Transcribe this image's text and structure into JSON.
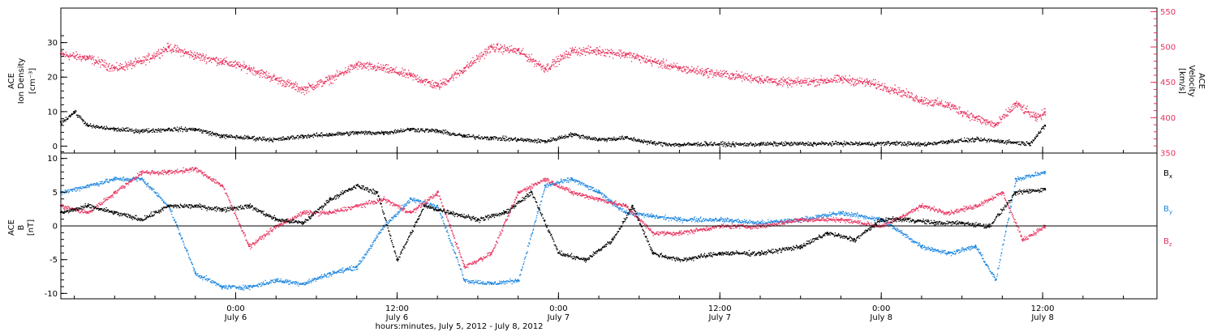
{
  "figure": {
    "xlabel": "hours:minutes, July  5, 2012 - July  8, 2012",
    "x_range": [
      "2012-07-05 11:00",
      "2012-07-08 20:30"
    ]
  },
  "colors": {
    "black": "#000000",
    "red": "#e8325e",
    "blue": "#1c86e0"
  },
  "chart_data": [
    {
      "type": "scatter",
      "panel": "top",
      "ylabel_left": [
        "ACE",
        "Ion Density",
        "[cm⁻³]"
      ],
      "ylabel_right": [
        "ACE",
        "Velocity",
        "[km/s]"
      ],
      "ylim_left": [
        -2,
        40
      ],
      "yticks_left": [
        0,
        10,
        20,
        30
      ],
      "ylim_right": [
        350,
        555
      ],
      "yticks_right": [
        350,
        400,
        450,
        500,
        550
      ],
      "x_ticks": [
        {
          "time": "2012-07-06 00:00",
          "label": "0:00",
          "sublabel": "July 6"
        },
        {
          "time": "2012-07-06 12:00",
          "label": "12:00",
          "sublabel": "July 6"
        },
        {
          "time": "2012-07-07 00:00",
          "label": "0:00",
          "sublabel": "July 7"
        },
        {
          "time": "2012-07-07 12:00",
          "label": "12:00",
          "sublabel": "July 7"
        },
        {
          "time": "2012-07-08 00:00",
          "label": "0:00",
          "sublabel": "July 8"
        },
        {
          "time": "2012-07-08 12:00",
          "label": "12:00",
          "sublabel": "July 8"
        }
      ],
      "series": [
        {
          "key": "velocity",
          "axis": "right",
          "color": "#e8325e",
          "points": [
            [
              "2012-07-05 11:00",
              490
            ],
            [
              "2012-07-05 13:00",
              485
            ],
            [
              "2012-07-05 15:00",
              470
            ],
            [
              "2012-07-05 17:00",
              480
            ],
            [
              "2012-07-05 19:00",
              500
            ],
            [
              "2012-07-05 21:00",
              488
            ],
            [
              "2012-07-05 23:00",
              480
            ],
            [
              "2012-07-06 01:00",
              470
            ],
            [
              "2012-07-06 03:00",
              455
            ],
            [
              "2012-07-06 05:00",
              440
            ],
            [
              "2012-07-06 07:00",
              455
            ],
            [
              "2012-07-06 09:00",
              475
            ],
            [
              "2012-07-06 11:00",
              470
            ],
            [
              "2012-07-06 13:00",
              460
            ],
            [
              "2012-07-06 15:00",
              445
            ],
            [
              "2012-07-06 17:00",
              470
            ],
            [
              "2012-07-06 19:00",
              500
            ],
            [
              "2012-07-06 21:00",
              495
            ],
            [
              "2012-07-06 23:00",
              470
            ],
            [
              "2012-07-07 01:00",
              495
            ],
            [
              "2012-07-07 03:00",
              495
            ],
            [
              "2012-07-07 05:00",
              490
            ],
            [
              "2012-07-07 07:00",
              480
            ],
            [
              "2012-07-07 09:00",
              470
            ],
            [
              "2012-07-07 11:00",
              465
            ],
            [
              "2012-07-07 13:00",
              460
            ],
            [
              "2012-07-07 15:00",
              455
            ],
            [
              "2012-07-07 17:00",
              450
            ],
            [
              "2012-07-07 19:00",
              452
            ],
            [
              "2012-07-07 21:00",
              455
            ],
            [
              "2012-07-07 23:00",
              450
            ],
            [
              "2012-07-08 01:00",
              440
            ],
            [
              "2012-07-08 03:00",
              425
            ],
            [
              "2012-07-08 05:00",
              418
            ],
            [
              "2012-07-08 07:00",
              400
            ],
            [
              "2012-07-08 08:30",
              390
            ],
            [
              "2012-07-08 10:00",
              420
            ],
            [
              "2012-07-08 11:30",
              400
            ],
            [
              "2012-07-08 12:10",
              408
            ]
          ]
        },
        {
          "key": "density",
          "axis": "left",
          "color": "#000000",
          "points": [
            [
              "2012-07-05 11:00",
              7
            ],
            [
              "2012-07-05 12:00",
              10
            ],
            [
              "2012-07-05 13:00",
              6
            ],
            [
              "2012-07-05 15:00",
              5
            ],
            [
              "2012-07-05 17:00",
              4.5
            ],
            [
              "2012-07-05 19:00",
              5
            ],
            [
              "2012-07-05 21:00",
              5
            ],
            [
              "2012-07-05 23:00",
              3
            ],
            [
              "2012-07-06 01:00",
              2.5
            ],
            [
              "2012-07-06 03:00",
              2
            ],
            [
              "2012-07-06 05:00",
              3
            ],
            [
              "2012-07-06 07:00",
              3.5
            ],
            [
              "2012-07-06 09:00",
              4
            ],
            [
              "2012-07-06 11:00",
              4
            ],
            [
              "2012-07-06 13:00",
              5
            ],
            [
              "2012-07-06 15:00",
              4.5
            ],
            [
              "2012-07-06 17:00",
              3
            ],
            [
              "2012-07-06 19:00",
              2.5
            ],
            [
              "2012-07-06 21:00",
              2
            ],
            [
              "2012-07-06 23:00",
              1.5
            ],
            [
              "2012-07-07 01:00",
              3.5
            ],
            [
              "2012-07-07 03:00",
              2
            ],
            [
              "2012-07-07 05:00",
              2.5
            ],
            [
              "2012-07-07 07:00",
              1
            ],
            [
              "2012-07-07 09:00",
              0.5
            ],
            [
              "2012-07-07 11:00",
              0.8
            ],
            [
              "2012-07-07 13:00",
              0.6
            ],
            [
              "2012-07-07 15:00",
              0.7
            ],
            [
              "2012-07-07 17:00",
              0.8
            ],
            [
              "2012-07-07 19:00",
              0.8
            ],
            [
              "2012-07-07 21:00",
              0.9
            ],
            [
              "2012-07-07 23:00",
              0.8
            ],
            [
              "2012-07-08 01:00",
              1
            ],
            [
              "2012-07-08 03:00",
              0.6
            ],
            [
              "2012-07-08 05:00",
              1.5
            ],
            [
              "2012-07-08 07:00",
              2
            ],
            [
              "2012-07-08 09:00",
              1.5
            ],
            [
              "2012-07-08 11:00",
              0.8
            ],
            [
              "2012-07-08 12:10",
              6
            ]
          ]
        }
      ]
    },
    {
      "type": "scatter",
      "panel": "bottom",
      "ylabel_left": [
        "ACE",
        "B",
        "[nT]"
      ],
      "ylim": [
        -10.8,
        10.8
      ],
      "yticks": [
        -10,
        -5,
        0,
        5,
        10
      ],
      "zero_line": true,
      "x_ticks": [
        {
          "time": "2012-07-06 00:00",
          "label": "0:00",
          "sublabel": "July 6"
        },
        {
          "time": "2012-07-06 12:00",
          "label": "12:00",
          "sublabel": "July 6"
        },
        {
          "time": "2012-07-07 00:00",
          "label": "0:00",
          "sublabel": "July 7"
        },
        {
          "time": "2012-07-07 12:00",
          "label": "12:00",
          "sublabel": "July 7"
        },
        {
          "time": "2012-07-08 00:00",
          "label": "0:00",
          "sublabel": "July 8"
        },
        {
          "time": "2012-07-08 12:00",
          "label": "12:00",
          "sublabel": "July 8"
        }
      ],
      "series": [
        {
          "name": "B",
          "subscript": "x",
          "color": "#000000",
          "points": [
            [
              "2012-07-05 11:00",
              2
            ],
            [
              "2012-07-05 13:00",
              3
            ],
            [
              "2012-07-05 15:00",
              2
            ],
            [
              "2012-07-05 17:00",
              1
            ],
            [
              "2012-07-05 19:00",
              3
            ],
            [
              "2012-07-05 21:00",
              3
            ],
            [
              "2012-07-05 23:00",
              2.5
            ],
            [
              "2012-07-06 01:00",
              3
            ],
            [
              "2012-07-06 03:00",
              1
            ],
            [
              "2012-07-06 05:00",
              0.5
            ],
            [
              "2012-07-06 07:00",
              4
            ],
            [
              "2012-07-06 09:00",
              6
            ],
            [
              "2012-07-06 10:30",
              5
            ],
            [
              "2012-07-06 12:00",
              -5
            ],
            [
              "2012-07-06 14:00",
              3
            ],
            [
              "2012-07-06 16:00",
              2
            ],
            [
              "2012-07-06 18:00",
              1
            ],
            [
              "2012-07-06 20:00",
              2
            ],
            [
              "2012-07-06 22:00",
              5
            ],
            [
              "2012-07-07 00:00",
              -4
            ],
            [
              "2012-07-07 02:00",
              -5
            ],
            [
              "2012-07-07 04:00",
              -2
            ],
            [
              "2012-07-07 05:30",
              3
            ],
            [
              "2012-07-07 07:00",
              -4
            ],
            [
              "2012-07-07 09:00",
              -5
            ],
            [
              "2012-07-07 12:00",
              -4
            ],
            [
              "2012-07-07 15:00",
              -4
            ],
            [
              "2012-07-07 18:00",
              -3
            ],
            [
              "2012-07-07 20:00",
              -1
            ],
            [
              "2012-07-07 22:00",
              -2
            ],
            [
              "2012-07-08 00:00",
              1
            ],
            [
              "2012-07-08 02:00",
              1
            ],
            [
              "2012-07-08 04:00",
              0.5
            ],
            [
              "2012-07-08 06:00",
              0.5
            ],
            [
              "2012-07-08 08:00",
              0
            ],
            [
              "2012-07-08 10:00",
              5
            ],
            [
              "2012-07-08 12:10",
              5.5
            ]
          ]
        },
        {
          "name": "B",
          "subscript": "y",
          "color": "#1c86e0",
          "points": [
            [
              "2012-07-05 11:00",
              5
            ],
            [
              "2012-07-05 13:00",
              6
            ],
            [
              "2012-07-05 15:00",
              7
            ],
            [
              "2012-07-05 17:00",
              7
            ],
            [
              "2012-07-05 19:00",
              3
            ],
            [
              "2012-07-05 21:00",
              -7
            ],
            [
              "2012-07-05 23:00",
              -9
            ],
            [
              "2012-07-06 01:00",
              -9
            ],
            [
              "2012-07-06 03:00",
              -8
            ],
            [
              "2012-07-06 05:00",
              -8.5
            ],
            [
              "2012-07-06 07:00",
              -7
            ],
            [
              "2012-07-06 09:00",
              -6
            ],
            [
              "2012-07-06 11:00",
              0
            ],
            [
              "2012-07-06 13:00",
              4
            ],
            [
              "2012-07-06 15:00",
              3
            ],
            [
              "2012-07-06 17:00",
              -8
            ],
            [
              "2012-07-06 19:00",
              -8.5
            ],
            [
              "2012-07-06 21:00",
              -8
            ],
            [
              "2012-07-06 23:00",
              6
            ],
            [
              "2012-07-07 01:00",
              7
            ],
            [
              "2012-07-07 03:00",
              5
            ],
            [
              "2012-07-07 05:00",
              2
            ],
            [
              "2012-07-07 07:00",
              1.5
            ],
            [
              "2012-07-07 09:00",
              1
            ],
            [
              "2012-07-07 12:00",
              1
            ],
            [
              "2012-07-07 15:00",
              0.5
            ],
            [
              "2012-07-07 18:00",
              1
            ],
            [
              "2012-07-07 21:00",
              2
            ],
            [
              "2012-07-08 00:00",
              1
            ],
            [
              "2012-07-08 03:00",
              -3
            ],
            [
              "2012-07-08 05:00",
              -4
            ],
            [
              "2012-07-08 07:00",
              -3
            ],
            [
              "2012-07-08 08:30",
              -8
            ],
            [
              "2012-07-08 10:00",
              7
            ],
            [
              "2012-07-08 12:10",
              8
            ]
          ]
        },
        {
          "name": "B",
          "subscript": "z",
          "color": "#e8325e",
          "points": [
            [
              "2012-07-05 11:00",
              3
            ],
            [
              "2012-07-05 13:00",
              2
            ],
            [
              "2012-07-05 15:00",
              5
            ],
            [
              "2012-07-05 17:00",
              8
            ],
            [
              "2012-07-05 19:00",
              8
            ],
            [
              "2012-07-05 21:00",
              8.5
            ],
            [
              "2012-07-05 23:00",
              6
            ],
            [
              "2012-07-06 01:00",
              -3
            ],
            [
              "2012-07-06 03:00",
              0
            ],
            [
              "2012-07-06 05:00",
              2
            ],
            [
              "2012-07-06 07:00",
              2
            ],
            [
              "2012-07-06 09:00",
              3
            ],
            [
              "2012-07-06 11:00",
              4
            ],
            [
              "2012-07-06 13:00",
              2
            ],
            [
              "2012-07-06 15:00",
              5
            ],
            [
              "2012-07-06 17:00",
              -6
            ],
            [
              "2012-07-06 19:00",
              -4
            ],
            [
              "2012-07-06 21:00",
              5
            ],
            [
              "2012-07-06 23:00",
              7
            ],
            [
              "2012-07-07 01:00",
              5
            ],
            [
              "2012-07-07 03:00",
              4
            ],
            [
              "2012-07-07 05:00",
              3
            ],
            [
              "2012-07-07 07:00",
              -1
            ],
            [
              "2012-07-07 09:00",
              -1
            ],
            [
              "2012-07-07 12:00",
              0
            ],
            [
              "2012-07-07 15:00",
              0
            ],
            [
              "2012-07-07 18:00",
              1
            ],
            [
              "2012-07-07 21:00",
              1
            ],
            [
              "2012-07-08 00:00",
              0
            ],
            [
              "2012-07-08 03:00",
              3
            ],
            [
              "2012-07-08 05:00",
              2
            ],
            [
              "2012-07-08 07:00",
              3
            ],
            [
              "2012-07-08 09:00",
              5
            ],
            [
              "2012-07-08 10:30",
              -2
            ],
            [
              "2012-07-08 12:10",
              0
            ]
          ]
        }
      ]
    }
  ]
}
